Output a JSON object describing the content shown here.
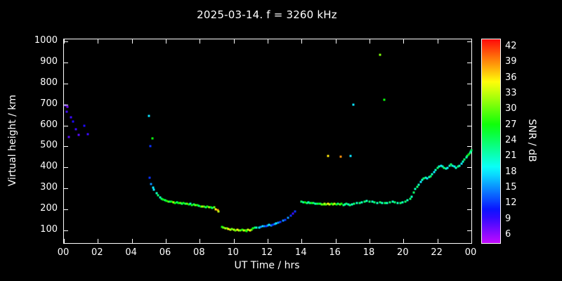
{
  "title": "2025-03-14. f = 3260 kHz",
  "colors": {
    "background": "#000000",
    "foreground": "#ffffff"
  },
  "chart_data": {
    "type": "scatter",
    "title": "2025-03-14. f = 3260 kHz",
    "xlabel": "UT Time / hrs",
    "ylabel": "Virtual height / km",
    "xlim": [
      0,
      24
    ],
    "ylim": [
      40,
      1010
    ],
    "grid": false,
    "xtick_values": [
      0,
      2,
      4,
      6,
      8,
      10,
      12,
      14,
      16,
      18,
      20,
      22,
      24
    ],
    "xtick_labels": [
      "00",
      "02",
      "04",
      "06",
      "08",
      "10",
      "12",
      "14",
      "16",
      "18",
      "20",
      "22",
      "00"
    ],
    "ytick_values": [
      100,
      200,
      300,
      400,
      500,
      600,
      700,
      800,
      900,
      1000
    ],
    "ytick_labels": [
      "100",
      "200",
      "300",
      "400",
      "500",
      "600",
      "700",
      "800",
      "900",
      "1000"
    ],
    "colorbar": {
      "label": "SNR / dB",
      "min": 4.5,
      "max": 43.5,
      "ticks": [
        6,
        9,
        12,
        15,
        18,
        21,
        24,
        27,
        30,
        33,
        36,
        39,
        42
      ]
    },
    "points_format": "[ut_hours, virtual_height_km, snr_db]",
    "points": [
      [
        0.1,
        695,
        8
      ],
      [
        0.2,
        690,
        7
      ],
      [
        0.15,
        665,
        9
      ],
      [
        0.3,
        545,
        8
      ],
      [
        0.4,
        640,
        9
      ],
      [
        0.55,
        620,
        10
      ],
      [
        0.7,
        582,
        9
      ],
      [
        0.85,
        555,
        8
      ],
      [
        1.2,
        600,
        10
      ],
      [
        1.4,
        558,
        9
      ],
      [
        5.0,
        645,
        18
      ],
      [
        5.2,
        538,
        27
      ],
      [
        5.1,
        500,
        12
      ],
      [
        5.05,
        352,
        12
      ],
      [
        5.15,
        322,
        15
      ],
      [
        5.25,
        305,
        18
      ],
      [
        5.3,
        295,
        18
      ],
      [
        5.45,
        278,
        21
      ],
      [
        5.55,
        268,
        24
      ],
      [
        5.65,
        258,
        21
      ],
      [
        5.75,
        252,
        24
      ],
      [
        5.85,
        248,
        27
      ],
      [
        5.95,
        244,
        24
      ],
      [
        6.05,
        240,
        27
      ],
      [
        6.15,
        238,
        30
      ],
      [
        6.25,
        236,
        24
      ],
      [
        6.35,
        238,
        27
      ],
      [
        6.45,
        234,
        33
      ],
      [
        6.55,
        232,
        27
      ],
      [
        6.65,
        234,
        24
      ],
      [
        6.75,
        230,
        27
      ],
      [
        6.85,
        232,
        30
      ],
      [
        6.95,
        228,
        24
      ],
      [
        7.05,
        230,
        27
      ],
      [
        7.15,
        226,
        24
      ],
      [
        7.25,
        228,
        30
      ],
      [
        7.35,
        224,
        27
      ],
      [
        7.45,
        226,
        21
      ],
      [
        7.55,
        222,
        27
      ],
      [
        7.65,
        224,
        24
      ],
      [
        7.75,
        220,
        30
      ],
      [
        7.85,
        222,
        27
      ],
      [
        7.95,
        218,
        24
      ],
      [
        8.05,
        215,
        27
      ],
      [
        8.15,
        213,
        33
      ],
      [
        8.25,
        215,
        30
      ],
      [
        8.35,
        211,
        24
      ],
      [
        8.45,
        213,
        27
      ],
      [
        8.55,
        209,
        33
      ],
      [
        8.65,
        211,
        27
      ],
      [
        8.75,
        207,
        24
      ],
      [
        8.85,
        209,
        30
      ],
      [
        8.95,
        200,
        36
      ],
      [
        9.05,
        196,
        39
      ],
      [
        9.1,
        192,
        33
      ],
      [
        9.3,
        118,
        27
      ],
      [
        9.4,
        114,
        30
      ],
      [
        9.5,
        111,
        33
      ],
      [
        9.6,
        109,
        30
      ],
      [
        9.7,
        107,
        36
      ],
      [
        9.8,
        104,
        33
      ],
      [
        9.9,
        106,
        30
      ],
      [
        10.0,
        103,
        33
      ],
      [
        10.1,
        101,
        30
      ],
      [
        10.2,
        104,
        36
      ],
      [
        10.3,
        101,
        33
      ],
      [
        10.4,
        99,
        30
      ],
      [
        10.5,
        102,
        27
      ],
      [
        10.6,
        99,
        33
      ],
      [
        10.7,
        101,
        30
      ],
      [
        10.75,
        98,
        27
      ],
      [
        10.85,
        103,
        33
      ],
      [
        10.95,
        101,
        36
      ],
      [
        11.05,
        105,
        30
      ],
      [
        11.15,
        109,
        27
      ],
      [
        11.25,
        112,
        24
      ],
      [
        11.35,
        114,
        21
      ],
      [
        11.5,
        113,
        18
      ],
      [
        11.6,
        116,
        15
      ],
      [
        11.7,
        119,
        18
      ],
      [
        11.8,
        121,
        15
      ],
      [
        11.9,
        119,
        12
      ],
      [
        12.0,
        123,
        15
      ],
      [
        12.1,
        126,
        18
      ],
      [
        12.2,
        124,
        15
      ],
      [
        12.3,
        128,
        12
      ],
      [
        12.4,
        131,
        15
      ],
      [
        12.5,
        134,
        18
      ],
      [
        12.6,
        137,
        15
      ],
      [
        12.75,
        141,
        12
      ],
      [
        12.9,
        146,
        15
      ],
      [
        13.05,
        152,
        12
      ],
      [
        13.2,
        161,
        15
      ],
      [
        13.35,
        172,
        12
      ],
      [
        13.5,
        181,
        9
      ],
      [
        13.6,
        190,
        12
      ],
      [
        14.0,
        236,
        24
      ],
      [
        14.1,
        233,
        21
      ],
      [
        14.2,
        235,
        27
      ],
      [
        14.3,
        231,
        24
      ],
      [
        14.4,
        233,
        21
      ],
      [
        14.5,
        229,
        24
      ],
      [
        14.6,
        231,
        27
      ],
      [
        14.7,
        229,
        24
      ],
      [
        14.8,
        226,
        21
      ],
      [
        14.9,
        228,
        24
      ],
      [
        15.0,
        226,
        27
      ],
      [
        15.1,
        228,
        24
      ],
      [
        15.2,
        225,
        30
      ],
      [
        15.3,
        223,
        27
      ],
      [
        15.35,
        226,
        33
      ],
      [
        15.45,
        223,
        30
      ],
      [
        15.55,
        226,
        36
      ],
      [
        15.65,
        223,
        33
      ],
      [
        15.75,
        226,
        27
      ],
      [
        15.85,
        223,
        30
      ],
      [
        15.95,
        226,
        33
      ],
      [
        16.05,
        223,
        27
      ],
      [
        16.15,
        226,
        24
      ],
      [
        16.25,
        223,
        30
      ],
      [
        16.35,
        226,
        27
      ],
      [
        16.45,
        221,
        24
      ],
      [
        16.55,
        223,
        21
      ],
      [
        16.65,
        226,
        24
      ],
      [
        16.75,
        223,
        21
      ],
      [
        16.85,
        221,
        24
      ],
      [
        16.95,
        223,
        21
      ],
      [
        17.1,
        226,
        24
      ],
      [
        17.25,
        229,
        21
      ],
      [
        17.4,
        232,
        24
      ],
      [
        17.55,
        235,
        21
      ],
      [
        17.7,
        237,
        24
      ],
      [
        17.85,
        240,
        21
      ],
      [
        18.0,
        238,
        24
      ],
      [
        18.15,
        236,
        21
      ],
      [
        18.3,
        233,
        24
      ],
      [
        18.45,
        231,
        21
      ],
      [
        18.6,
        233,
        24
      ],
      [
        18.75,
        231,
        21
      ],
      [
        18.9,
        229,
        24
      ],
      [
        19.05,
        231,
        21
      ],
      [
        19.2,
        233,
        24
      ],
      [
        19.35,
        236,
        21
      ],
      [
        19.5,
        233,
        24
      ],
      [
        19.65,
        231,
        21
      ],
      [
        19.8,
        229,
        24
      ],
      [
        19.95,
        233,
        21
      ],
      [
        15.55,
        455,
        36
      ],
      [
        16.3,
        452,
        39
      ],
      [
        16.9,
        455,
        18
      ],
      [
        17.05,
        700,
        18
      ],
      [
        18.6,
        935,
        31
      ],
      [
        18.85,
        722,
        27
      ],
      [
        20.1,
        238,
        24
      ],
      [
        20.25,
        244,
        21
      ],
      [
        20.4,
        252,
        24
      ],
      [
        20.5,
        262,
        21
      ],
      [
        20.6,
        282,
        24
      ],
      [
        20.7,
        298,
        21
      ],
      [
        20.8,
        308,
        24
      ],
      [
        20.9,
        318,
        21
      ],
      [
        21.0,
        330,
        18
      ],
      [
        21.1,
        340,
        21
      ],
      [
        21.2,
        347,
        24
      ],
      [
        21.3,
        352,
        21
      ],
      [
        21.4,
        349,
        18
      ],
      [
        21.5,
        354,
        21
      ],
      [
        21.6,
        359,
        24
      ],
      [
        21.7,
        368,
        21
      ],
      [
        21.8,
        378,
        18
      ],
      [
        21.9,
        388,
        21
      ],
      [
        22.0,
        398,
        24
      ],
      [
        22.1,
        404,
        21
      ],
      [
        22.2,
        409,
        18
      ],
      [
        22.3,
        404,
        21
      ],
      [
        22.4,
        399,
        24
      ],
      [
        22.5,
        394,
        21
      ],
      [
        22.6,
        399,
        18
      ],
      [
        22.7,
        408,
        21
      ],
      [
        22.8,
        414,
        24
      ],
      [
        22.9,
        409,
        21
      ],
      [
        23.0,
        404,
        18
      ],
      [
        23.1,
        399,
        21
      ],
      [
        23.2,
        404,
        24
      ],
      [
        23.3,
        409,
        21
      ],
      [
        23.4,
        419,
        18
      ],
      [
        23.5,
        428,
        21
      ],
      [
        23.6,
        438,
        24
      ],
      [
        23.7,
        448,
        21
      ],
      [
        23.75,
        455,
        24
      ],
      [
        23.85,
        462,
        27
      ],
      [
        23.9,
        468,
        24
      ],
      [
        23.95,
        475,
        21
      ],
      [
        24.0,
        482,
        24
      ]
    ]
  }
}
